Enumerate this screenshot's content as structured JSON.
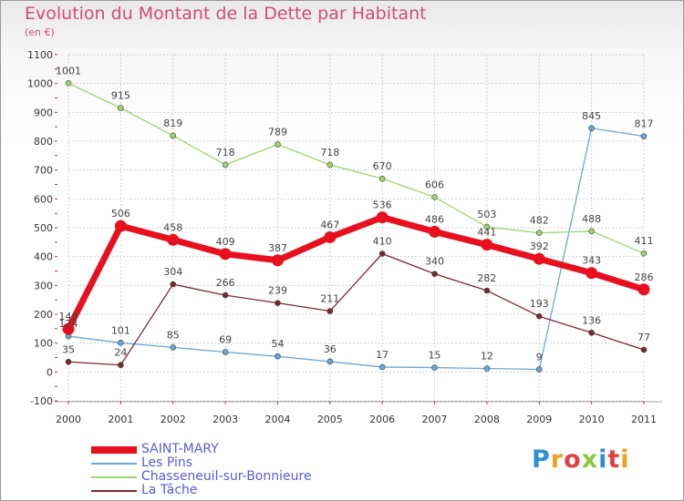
{
  "title": "Evolution du Montant de la Dette par Habitant",
  "unit": "(en €)",
  "logo": {
    "text": "Proxiti",
    "colors": [
      "#2e8fd6",
      "#f0a020",
      "#e04040",
      "#8cc63f",
      "#2e8fd6",
      "#e04040",
      "#f0a020"
    ]
  },
  "chart_data": {
    "type": "line",
    "title": "Evolution du Montant de la Dette par Habitant",
    "ylabel": "(en €)",
    "xlabel": "",
    "ylim": [
      -100,
      1100
    ],
    "yticks": [
      "-100",
      "0",
      "100",
      "200",
      "300",
      "400",
      "500",
      "600",
      "700",
      "800",
      "900",
      "1000",
      "1100"
    ],
    "x": [
      "2000",
      "2001",
      "2002",
      "2003",
      "2004",
      "2005",
      "2006",
      "2007",
      "2008",
      "2009",
      "2010",
      "2011"
    ],
    "grid": true,
    "legend_position": "bottom-left",
    "series": [
      {
        "name": "SAINT-MARY",
        "color": "#e8101e",
        "thick": true,
        "values": [
          149,
          506,
          458,
          409,
          387,
          467,
          536,
          486,
          441,
          392,
          343,
          286
        ],
        "labels": [
          "149",
          "506",
          "458",
          "409",
          "387",
          "467",
          "536",
          "486",
          "441",
          "392",
          "343",
          "286"
        ]
      },
      {
        "name": "Les Pins",
        "color": "#6aa6d6",
        "thick": false,
        "values": [
          124,
          101,
          85,
          69,
          54,
          36,
          17,
          15,
          12,
          9,
          845,
          817
        ],
        "labels": [
          "124",
          "101",
          "85",
          "69",
          "54",
          "36",
          "17",
          "15",
          "12",
          "9",
          "845",
          "817"
        ]
      },
      {
        "name": "Chasseneuil-sur-Bonnieure",
        "color": "#9fd36e",
        "thick": false,
        "values": [
          1001,
          915,
          819,
          718,
          789,
          718,
          670,
          606,
          503,
          482,
          488,
          411
        ],
        "labels": [
          "1001",
          "915",
          "819",
          "718",
          "789",
          "718",
          "670",
          "606",
          "503",
          "482",
          "488",
          "411"
        ]
      },
      {
        "name": "La Tâche",
        "color": "#7a2830",
        "thick": false,
        "values": [
          35,
          24,
          304,
          266,
          239,
          211,
          410,
          340,
          282,
          193,
          136,
          77
        ],
        "labels": [
          "35",
          "24",
          "304",
          "266",
          "239",
          "211",
          "410",
          "340",
          "282",
          "193",
          "136",
          "77"
        ]
      }
    ]
  }
}
